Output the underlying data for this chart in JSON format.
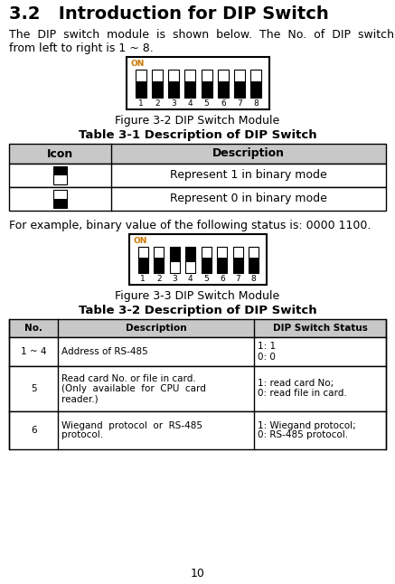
{
  "title": "3.2   Introduction for DIP Switch",
  "intro_line1": "The  DIP  switch  module  is  shown  below.  The  No.  of  DIP  switch",
  "intro_line2": "from left to right is 1 ~ 8.",
  "fig32_caption": "Figure 3-2 DIP Switch Module",
  "table31_title": "Table 3-1 Description of DIP Switch",
  "table31_col1": "Icon",
  "table31_col2": "Description",
  "table31_row1_desc": "Represent 1 in binary mode",
  "table31_row2_desc": "Represent 0 in binary mode",
  "example_text": "For example, binary value of the following status is: 0000 1100.",
  "fig33_caption": "Figure 3-3 DIP Switch Module",
  "table32_title": "Table 3-2 Description of DIP Switch",
  "table32_h1": "No.",
  "table32_h2": "Description",
  "table32_h3": "DIP Switch Status",
  "row1_no": "1 ~ 4",
  "row1_desc": "Address of RS-485",
  "row1_status": "1: 1\n0: 0",
  "row2_no": "5",
  "row2_desc": "Read card No. or file in card.\n(Only  available  for  CPU  card\nreader.)",
  "row2_status": "1: read card No;\n0: read file in card.",
  "row3_no": "6",
  "row3_desc": "Wiegand  protocol  or  RS-485\nprotocol.",
  "row3_status": "1: Wiegand protocol;\n0: RS-485 protocol.",
  "page_number": "10",
  "dip1_pattern": [
    0,
    0,
    0,
    0,
    0,
    0,
    0,
    0
  ],
  "dip2_pattern": [
    0,
    0,
    1,
    1,
    0,
    0,
    0,
    0
  ],
  "bg_color": "#ffffff",
  "header_bg": "#c8c8c8",
  "on_color": "#cc7700",
  "title_fontsize": 14,
  "body_fontsize": 9,
  "table_fontsize": 9,
  "small_fontsize": 7.5
}
